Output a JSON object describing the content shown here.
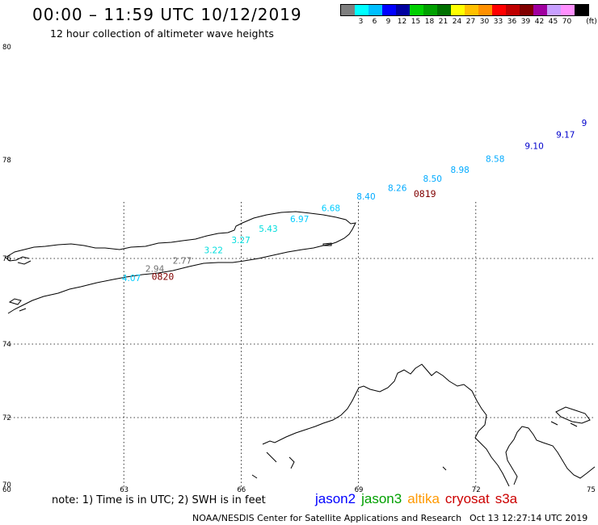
{
  "title": "00:00 – 11:59 UTC 10/12/2019",
  "subtitle": "12 hour collection of altimeter wave heights",
  "colorbar": {
    "unit": "(ft)",
    "colors": [
      "#7f7f7f",
      "#00ffff",
      "#00bfff",
      "#0000ff",
      "#0000a0",
      "#00d000",
      "#00a000",
      "#007000",
      "#ffff00",
      "#ffc000",
      "#ff9000",
      "#ff0000",
      "#c00000",
      "#800000",
      "#a000a0",
      "#c8a0ff",
      "#ff90ff",
      "#000000"
    ],
    "labels": [
      "3",
      "6",
      "9",
      "12",
      "15",
      "18",
      "21",
      "24",
      "27",
      "30",
      "33",
      "36",
      "39",
      "42",
      "45",
      "70"
    ]
  },
  "map": {
    "lon_range": [
      60,
      75
    ],
    "lat_range": [
      70,
      80
    ],
    "x_ticks": [
      "60",
      "63",
      "66",
      "69",
      "72",
      "75"
    ],
    "y_ticks": [
      {
        "lat": 80,
        "label": "80"
      },
      {
        "lat": 78,
        "label": "78"
      },
      {
        "lat": 76,
        "label": "76"
      },
      {
        "lat": 74,
        "label": "74"
      },
      {
        "lat": 72,
        "label": "72"
      },
      {
        "lat": 70,
        "label": "70"
      }
    ],
    "gridlines": true
  },
  "wave_obs": [
    {
      "value": "4.07",
      "lon": 63.2,
      "lat": 75.47,
      "color": "#00ccff"
    },
    {
      "value": "2.94",
      "lon": 63.8,
      "lat": 75.69,
      "color": "#707070"
    },
    {
      "value": "2.77",
      "lon": 64.5,
      "lat": 75.88,
      "color": "#707070"
    },
    {
      "value": "3.22",
      "lon": 65.3,
      "lat": 76.11,
      "color": "#00dddd"
    },
    {
      "value": "3.27",
      "lon": 66.0,
      "lat": 76.31,
      "color": "#00dddd"
    },
    {
      "value": "5.43",
      "lon": 66.7,
      "lat": 76.54,
      "color": "#00dddd"
    },
    {
      "value": "6.97",
      "lon": 67.5,
      "lat": 76.74,
      "color": "#00ccff"
    },
    {
      "value": "6.68",
      "lon": 68.3,
      "lat": 76.96,
      "color": "#00ccff"
    },
    {
      "value": "8.40",
      "lon": 69.2,
      "lat": 77.2,
      "color": "#00aaff"
    },
    {
      "value": "8.26",
      "lon": 70.0,
      "lat": 77.37,
      "color": "#00aaff"
    },
    {
      "value": "8.50",
      "lon": 70.9,
      "lat": 77.56,
      "color": "#00aaff"
    },
    {
      "value": "8.98",
      "lon": 71.6,
      "lat": 77.74,
      "color": "#00aaff"
    },
    {
      "value": "8.58",
      "lon": 72.5,
      "lat": 77.96,
      "color": "#00aaff"
    },
    {
      "value": "9.10",
      "lon": 73.5,
      "lat": 78.19,
      "color": "#0000cc"
    },
    {
      "value": "9.17",
      "lon": 74.3,
      "lat": 78.39,
      "color": "#0000cc"
    },
    {
      "value": "9",
      "lon": 74.95,
      "lat": 78.6,
      "color": "#0000cc"
    }
  ],
  "time_labels": [
    {
      "text": "0820",
      "lon": 64.0,
      "lat": 75.5,
      "color": "#800000"
    },
    {
      "text": "0819",
      "lon": 70.7,
      "lat": 77.25,
      "color": "#800000"
    }
  ],
  "note": "note:  1) Time is in UTC; 2) SWH is in feet",
  "legend": [
    {
      "name": "jason2",
      "color": "#0000ff"
    },
    {
      "name": "jason3",
      "color": "#00a000"
    },
    {
      "name": "altika",
      "color": "#ff9900"
    },
    {
      "name": "cryosat",
      "color": "#cc0000"
    },
    {
      "name": "s3a",
      "color": "#cc0000"
    }
  ],
  "footer": {
    "credit": "NOAA/NESDIS Center for Satellite Applications and Research",
    "timestamp": "Oct 13 12:27:14 UTC 2019"
  }
}
